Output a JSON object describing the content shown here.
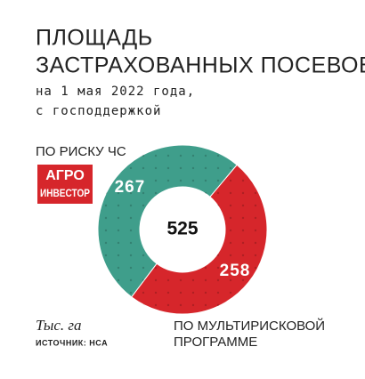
{
  "chart_data": {
    "type": "pie",
    "donut": true,
    "title_lines": [
      "ПЛОЩАДЬ",
      "ЗАСТРАХОВАННЫХ ПОСЕВОВ"
    ],
    "subtitle_lines": [
      "на 1 мая 2022 года,",
      "с господдержкой"
    ],
    "logo": [
      "АГРО",
      "ИНВЕСТОР"
    ],
    "categories": [
      [
        "ПО РИСКУ ЧС"
      ],
      [
        "ПО МУЛЬТИРИСКОВОЙ",
        "ПРОГРАММЕ"
      ]
    ],
    "values": [
      267,
      258
    ],
    "colors": [
      "#3f9e8b",
      "#d6262b"
    ],
    "total": 525,
    "unit": "Тыс. га",
    "source": "ИСТОЧНИК: НСА"
  }
}
